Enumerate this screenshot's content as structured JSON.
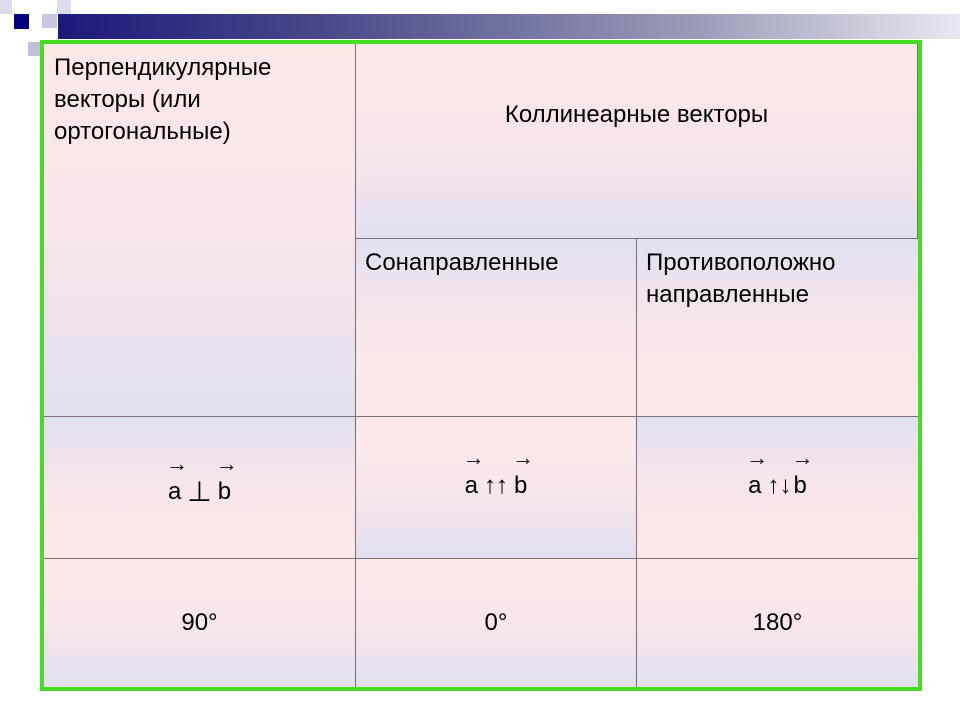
{
  "header": {
    "accent": "#1a1a7a",
    "border_color": "#44dd22"
  },
  "table": {
    "perpendicular_header": [
      "Перпендикулярные",
      "векторы (или",
      "ортогональные)"
    ],
    "collinear_header": "Коллинеарные векторы",
    "codirected_header": "Сонаправленные",
    "opposite_header": [
      "Противоположно",
      "направленные"
    ],
    "notation": {
      "perp": {
        "a": "a",
        "sym": "⊥",
        "b": "b"
      },
      "codir": {
        "a": "a",
        "sym": "↑↑",
        "b": "b"
      },
      "opp": {
        "a": "a",
        "sym": "↑↓",
        "b": "b"
      }
    },
    "angles": [
      "90°",
      "0°",
      "180°"
    ]
  }
}
